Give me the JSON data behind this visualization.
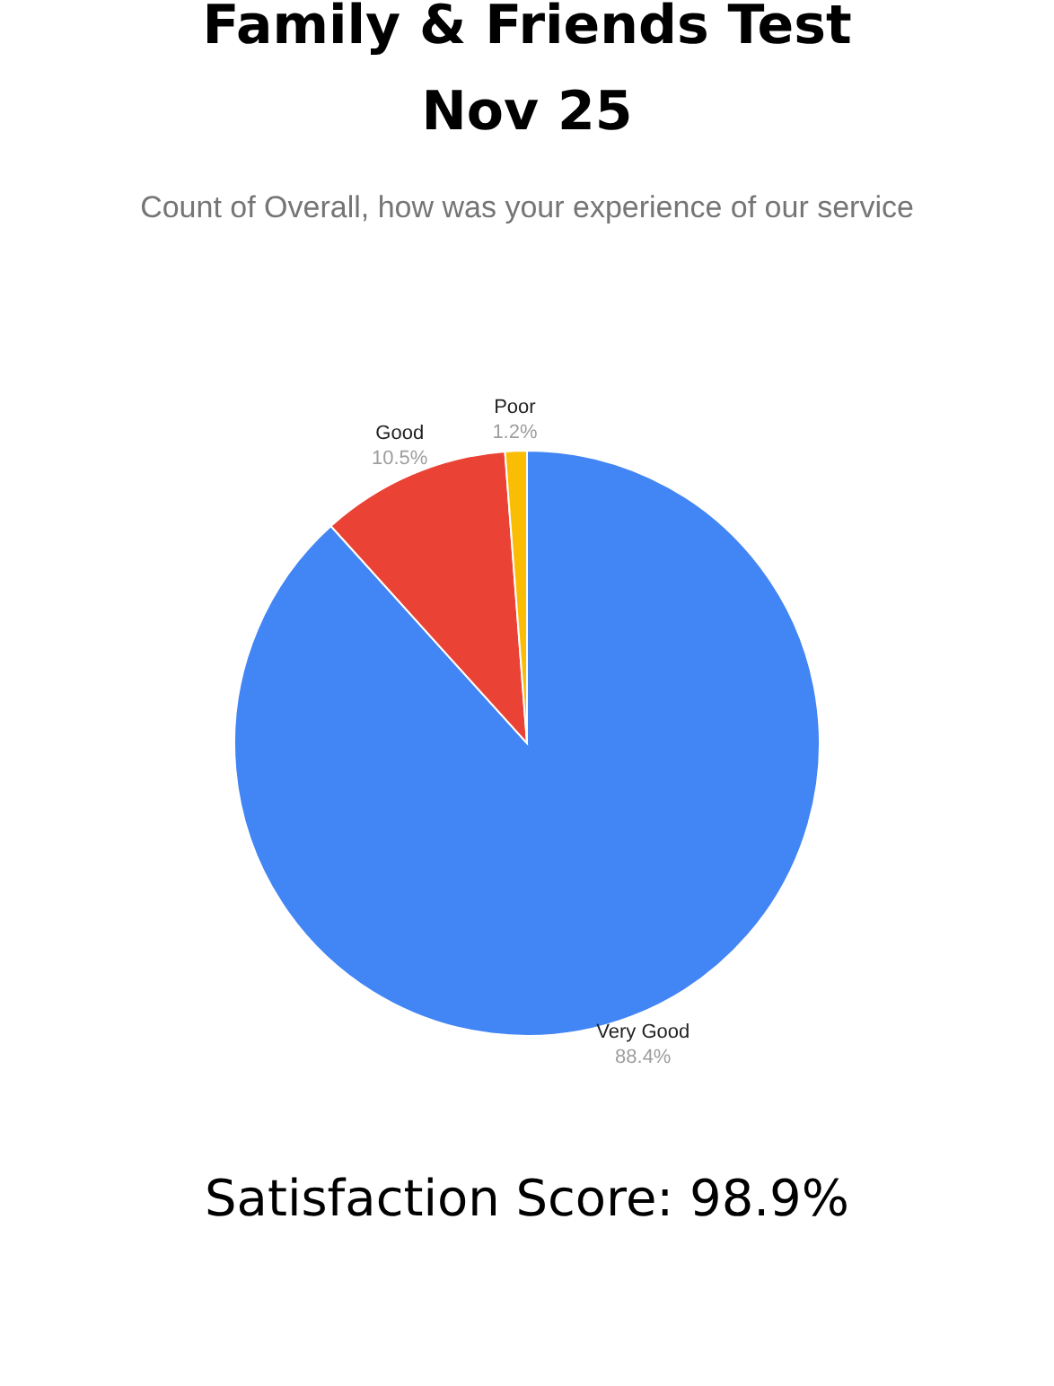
{
  "chart_data": {
    "type": "pie",
    "title": "Family & Friends Test\nNov 25",
    "subtitle": "Count of Overall, how was your experience of our service",
    "categories": [
      "Very Good",
      "Good",
      "Poor"
    ],
    "values": [
      88.4,
      10.5,
      1.2
    ],
    "value_labels": [
      "88.4%",
      "10.5%",
      "1.2%"
    ],
    "colors": [
      "#4285f4",
      "#ea4335",
      "#fbbc04"
    ],
    "legend": false,
    "annotations": [
      "Satisfaction Score: 98.9%"
    ]
  }
}
